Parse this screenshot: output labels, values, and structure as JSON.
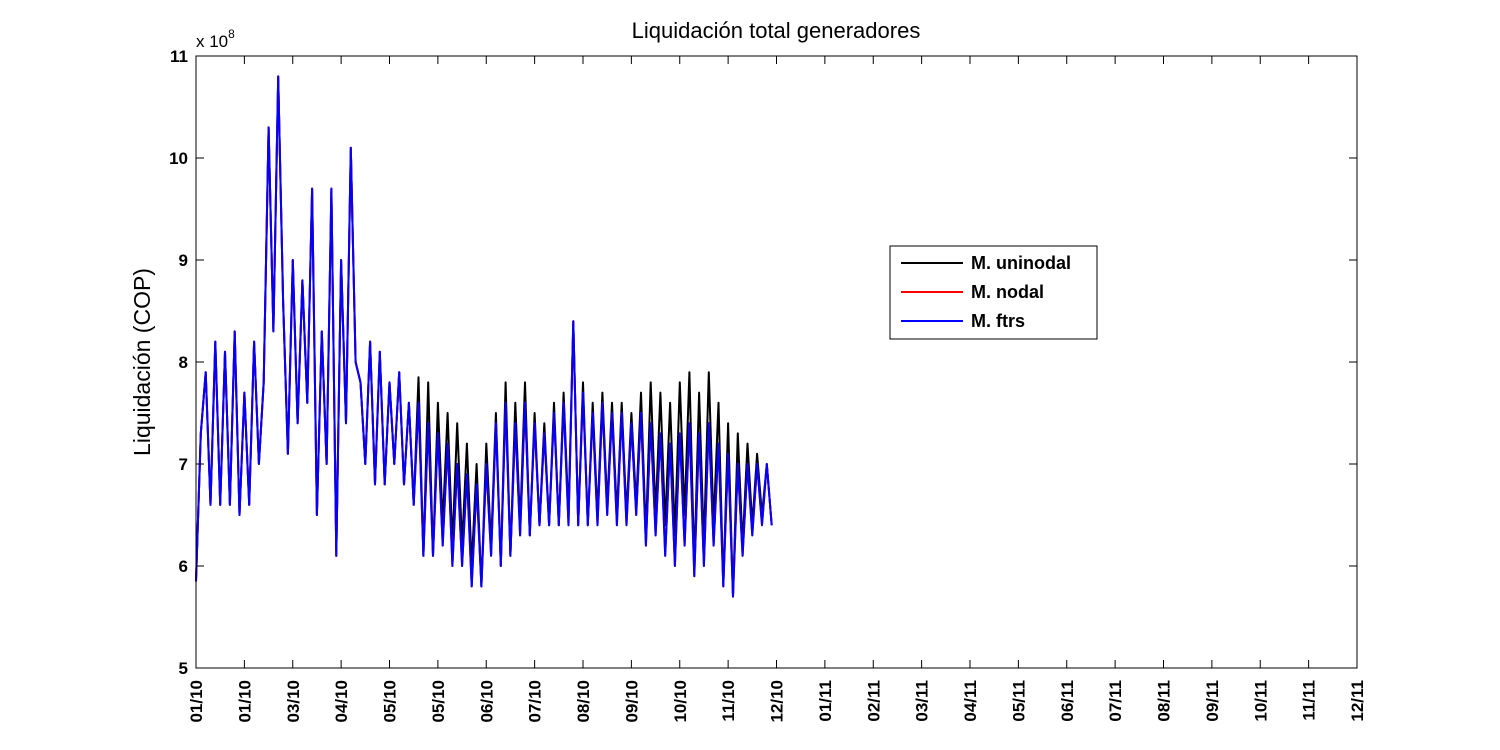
{
  "chart_data": {
    "type": "line",
    "title": "Liquidación total generadores",
    "ylabel": "Liquidación (COP)",
    "xlabel": "",
    "y_multiplier": {
      "base": "x 10",
      "exponent": "8"
    },
    "ylim": [
      500000000,
      1100000000
    ],
    "yticks": [
      500000000,
      600000000,
      700000000,
      800000000,
      900000000,
      1000000000,
      1100000000
    ],
    "ytick_labels": [
      "5",
      "6",
      "7",
      "8",
      "9",
      "10",
      "11"
    ],
    "xlim": [
      0,
      24
    ],
    "xticks": [
      0,
      1,
      2,
      3,
      4,
      5,
      6,
      7,
      8,
      9,
      10,
      11,
      12,
      13,
      14,
      15,
      16,
      17,
      18,
      19,
      20,
      21,
      22,
      23,
      24
    ],
    "xtick_labels": [
      "01/10",
      "01/10",
      "03/10",
      "04/10",
      "05/10",
      "05/10",
      "06/10",
      "07/10",
      "08/10",
      "09/10",
      "10/10",
      "11/10",
      "12/10",
      "01/11",
      "02/11",
      "03/11",
      "04/11",
      "05/11",
      "06/11",
      "07/11",
      "08/11",
      "09/11",
      "10/11",
      "11/11",
      "12/11"
    ],
    "grid": false,
    "legend_position": "center-right",
    "series": [
      {
        "name": "M. uninodal",
        "color": "#000000",
        "x": [
          0,
          0.1,
          0.2,
          0.3,
          0.4,
          0.5,
          0.6,
          0.7,
          0.8,
          0.9,
          1.0,
          1.1,
          1.2,
          1.3,
          1.4,
          1.5,
          1.6,
          1.7,
          1.8,
          1.9,
          2.0,
          2.1,
          2.2,
          2.3,
          2.4,
          2.5,
          2.6,
          2.7,
          2.8,
          2.9,
          3.0,
          3.1,
          3.2,
          3.3,
          3.4,
          3.5,
          3.6,
          3.7,
          3.8,
          3.9,
          4.0,
          4.1,
          4.2,
          4.3,
          4.4,
          4.5,
          4.6,
          4.7,
          4.8,
          4.9,
          5.0,
          5.1,
          5.2,
          5.3,
          5.4,
          5.5,
          5.6,
          5.7,
          5.8,
          5.9,
          6.0,
          6.1,
          6.2,
          6.3,
          6.4,
          6.5,
          6.6,
          6.7,
          6.8,
          6.9,
          7.0,
          7.1,
          7.2,
          7.3,
          7.4,
          7.5,
          7.6,
          7.7,
          7.8,
          7.9,
          8.0,
          8.1,
          8.2,
          8.3,
          8.4,
          8.5,
          8.6,
          8.7,
          8.8,
          8.9,
          9.0,
          9.1,
          9.2,
          9.3,
          9.4,
          9.5,
          9.6,
          9.7,
          9.8,
          9.9,
          10.0,
          10.1,
          10.2,
          10.3,
          10.4,
          10.5,
          10.6,
          10.7,
          10.8,
          10.9,
          11.0,
          11.1,
          11.2,
          11.3,
          11.4,
          11.5,
          11.6,
          11.7,
          11.8,
          11.9
        ],
        "y": [
          585000000,
          730000000,
          790000000,
          660000000,
          820000000,
          660000000,
          810000000,
          660000000,
          830000000,
          650000000,
          770000000,
          660000000,
          820000000,
          700000000,
          780000000,
          1030000000,
          830000000,
          1080000000,
          860000000,
          710000000,
          900000000,
          740000000,
          880000000,
          760000000,
          970000000,
          650000000,
          830000000,
          700000000,
          970000000,
          610000000,
          900000000,
          740000000,
          1010000000,
          800000000,
          780000000,
          700000000,
          820000000,
          680000000,
          810000000,
          680000000,
          780000000,
          700000000,
          790000000,
          680000000,
          760000000,
          660000000,
          785000000,
          610000000,
          780000000,
          610000000,
          760000000,
          640000000,
          750000000,
          620000000,
          740000000,
          620000000,
          720000000,
          600000000,
          700000000,
          580000000,
          720000000,
          620000000,
          750000000,
          600000000,
          780000000,
          610000000,
          760000000,
          640000000,
          780000000,
          630000000,
          750000000,
          640000000,
          740000000,
          640000000,
          760000000,
          640000000,
          770000000,
          650000000,
          840000000,
          640000000,
          780000000,
          640000000,
          760000000,
          650000000,
          770000000,
          660000000,
          760000000,
          650000000,
          760000000,
          650000000,
          750000000,
          660000000,
          770000000,
          630000000,
          780000000,
          650000000,
          770000000,
          640000000,
          760000000,
          630000000,
          780000000,
          650000000,
          790000000,
          600000000,
          770000000,
          620000000,
          790000000,
          640000000,
          760000000,
          580000000,
          740000000,
          570000000,
          730000000,
          620000000,
          720000000,
          640000000,
          710000000,
          650000000,
          700000000,
          640000000
        ]
      },
      {
        "name": "M. nodal",
        "color": "#ff0000",
        "x": [
          0,
          0.1,
          0.2,
          0.3,
          0.4,
          0.5,
          0.6,
          0.7,
          0.8,
          0.9,
          1.0,
          1.1,
          1.2,
          1.3,
          1.4,
          1.5,
          1.6,
          1.7,
          1.8,
          1.9,
          2.0,
          2.1,
          2.2,
          2.3,
          2.4,
          2.5,
          2.6,
          2.7,
          2.8,
          2.9,
          3.0,
          3.1,
          3.2,
          3.3,
          3.4,
          3.5,
          3.6,
          3.7,
          3.8,
          3.9,
          4.0,
          4.1,
          4.2,
          4.3,
          4.4,
          4.5,
          4.6,
          4.7,
          4.8,
          4.9,
          5.0,
          5.1,
          5.2,
          5.3,
          5.4,
          5.5,
          5.6,
          5.7,
          5.8,
          5.9,
          6.0,
          6.1,
          6.2,
          6.3,
          6.4,
          6.5,
          6.6,
          6.7,
          6.8,
          6.9,
          7.0,
          7.1,
          7.2,
          7.3,
          7.4,
          7.5,
          7.6,
          7.7,
          7.8,
          7.9,
          8.0,
          8.1,
          8.2,
          8.3,
          8.4,
          8.5,
          8.6,
          8.7,
          8.8,
          8.9,
          9.0,
          9.1,
          9.2,
          9.3,
          9.4,
          9.5,
          9.6,
          9.7,
          9.8,
          9.9,
          10.0,
          10.1,
          10.2,
          10.3,
          10.4,
          10.5,
          10.6,
          10.7,
          10.8,
          10.9,
          11.0,
          11.1,
          11.2,
          11.3,
          11.4,
          11.5,
          11.6,
          11.7,
          11.8,
          11.9
        ],
        "y": [
          585000000,
          730000000,
          790000000,
          660000000,
          820000000,
          660000000,
          810000000,
          660000000,
          830000000,
          650000000,
          770000000,
          660000000,
          820000000,
          700000000,
          780000000,
          1030000000,
          830000000,
          1080000000,
          860000000,
          710000000,
          900000000,
          740000000,
          880000000,
          760000000,
          970000000,
          650000000,
          830000000,
          700000000,
          970000000,
          610000000,
          900000000,
          740000000,
          1010000000,
          800000000,
          780000000,
          700000000,
          820000000,
          680000000,
          810000000,
          680000000,
          780000000,
          700000000,
          790000000,
          680000000,
          760000000,
          660000000,
          760000000,
          610000000,
          740000000,
          610000000,
          730000000,
          620000000,
          720000000,
          600000000,
          700000000,
          600000000,
          690000000,
          580000000,
          680000000,
          580000000,
          700000000,
          610000000,
          740000000,
          600000000,
          760000000,
          610000000,
          740000000,
          630000000,
          760000000,
          630000000,
          740000000,
          640000000,
          730000000,
          640000000,
          750000000,
          640000000,
          760000000,
          640000000,
          840000000,
          640000000,
          770000000,
          640000000,
          750000000,
          640000000,
          760000000,
          650000000,
          750000000,
          640000000,
          750000000,
          640000000,
          740000000,
          650000000,
          750000000,
          620000000,
          740000000,
          630000000,
          730000000,
          610000000,
          720000000,
          600000000,
          730000000,
          620000000,
          740000000,
          590000000,
          730000000,
          600000000,
          740000000,
          620000000,
          720000000,
          580000000,
          710000000,
          570000000,
          700000000,
          610000000,
          700000000,
          630000000,
          700000000,
          640000000,
          700000000,
          640000000
        ]
      },
      {
        "name": "M. ftrs",
        "color": "#0000ff",
        "x": [
          0,
          0.1,
          0.2,
          0.3,
          0.4,
          0.5,
          0.6,
          0.7,
          0.8,
          0.9,
          1.0,
          1.1,
          1.2,
          1.3,
          1.4,
          1.5,
          1.6,
          1.7,
          1.8,
          1.9,
          2.0,
          2.1,
          2.2,
          2.3,
          2.4,
          2.5,
          2.6,
          2.7,
          2.8,
          2.9,
          3.0,
          3.1,
          3.2,
          3.3,
          3.4,
          3.5,
          3.6,
          3.7,
          3.8,
          3.9,
          4.0,
          4.1,
          4.2,
          4.3,
          4.4,
          4.5,
          4.6,
          4.7,
          4.8,
          4.9,
          5.0,
          5.1,
          5.2,
          5.3,
          5.4,
          5.5,
          5.6,
          5.7,
          5.8,
          5.9,
          6.0,
          6.1,
          6.2,
          6.3,
          6.4,
          6.5,
          6.6,
          6.7,
          6.8,
          6.9,
          7.0,
          7.1,
          7.2,
          7.3,
          7.4,
          7.5,
          7.6,
          7.7,
          7.8,
          7.9,
          8.0,
          8.1,
          8.2,
          8.3,
          8.4,
          8.5,
          8.6,
          8.7,
          8.8,
          8.9,
          9.0,
          9.1,
          9.2,
          9.3,
          9.4,
          9.5,
          9.6,
          9.7,
          9.8,
          9.9,
          10.0,
          10.1,
          10.2,
          10.3,
          10.4,
          10.5,
          10.6,
          10.7,
          10.8,
          10.9,
          11.0,
          11.1,
          11.2,
          11.3,
          11.4,
          11.5,
          11.6,
          11.7,
          11.8,
          11.9
        ],
        "y": [
          585000000,
          730000000,
          790000000,
          660000000,
          820000000,
          660000000,
          810000000,
          660000000,
          830000000,
          650000000,
          770000000,
          660000000,
          820000000,
          700000000,
          780000000,
          1030000000,
          830000000,
          1080000000,
          860000000,
          710000000,
          900000000,
          740000000,
          880000000,
          760000000,
          970000000,
          650000000,
          830000000,
          700000000,
          970000000,
          610000000,
          900000000,
          740000000,
          1010000000,
          800000000,
          780000000,
          700000000,
          820000000,
          680000000,
          810000000,
          680000000,
          780000000,
          700000000,
          790000000,
          680000000,
          760000000,
          660000000,
          760000000,
          610000000,
          740000000,
          610000000,
          730000000,
          620000000,
          720000000,
          600000000,
          700000000,
          600000000,
          690000000,
          580000000,
          680000000,
          580000000,
          700000000,
          610000000,
          740000000,
          600000000,
          760000000,
          610000000,
          740000000,
          630000000,
          760000000,
          630000000,
          740000000,
          640000000,
          730000000,
          640000000,
          750000000,
          640000000,
          760000000,
          640000000,
          840000000,
          640000000,
          770000000,
          640000000,
          750000000,
          640000000,
          760000000,
          650000000,
          750000000,
          640000000,
          750000000,
          640000000,
          740000000,
          650000000,
          750000000,
          620000000,
          740000000,
          630000000,
          730000000,
          610000000,
          720000000,
          600000000,
          730000000,
          620000000,
          740000000,
          590000000,
          730000000,
          600000000,
          740000000,
          620000000,
          720000000,
          580000000,
          710000000,
          570000000,
          700000000,
          610000000,
          700000000,
          630000000,
          700000000,
          640000000,
          700000000,
          640000000
        ]
      }
    ]
  }
}
